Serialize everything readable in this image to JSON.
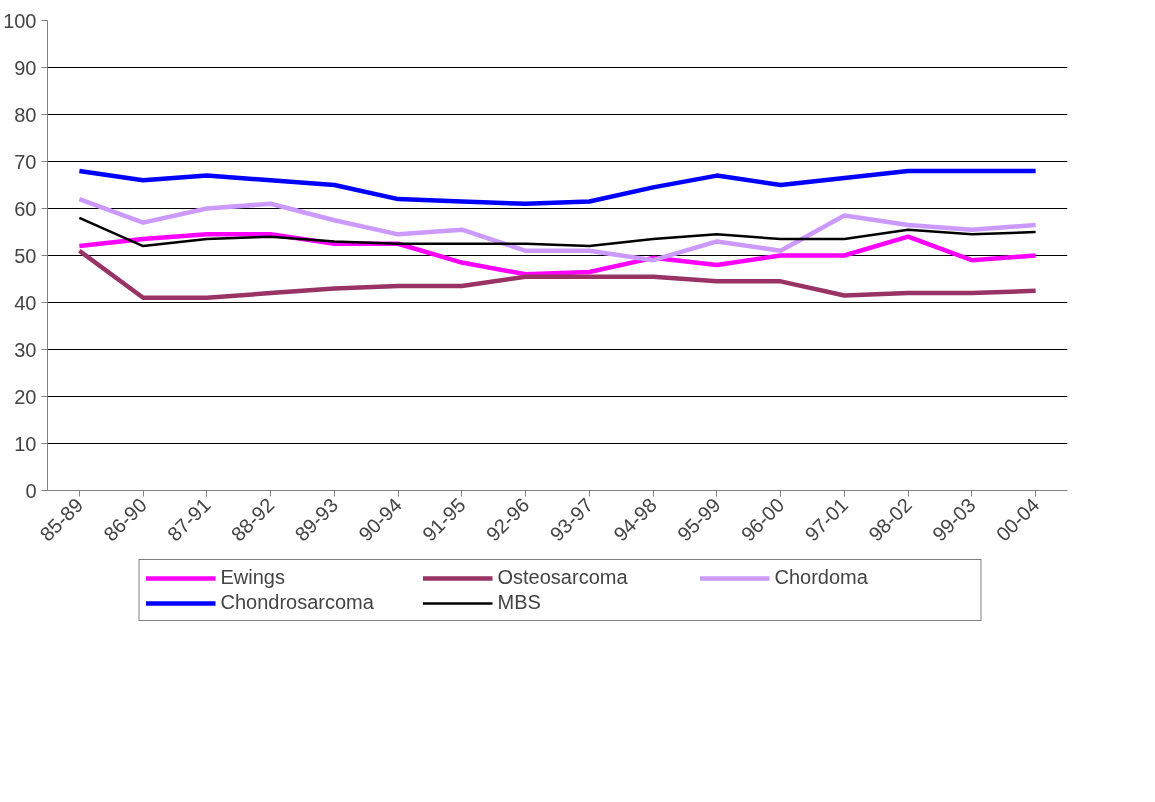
{
  "chart_data": {
    "type": "line",
    "categories": [
      "85-89",
      "86-90",
      "87-91",
      "88-92",
      "89-93",
      "90-94",
      "91-95",
      "92-96",
      "93-97",
      "94-98",
      "95-99",
      "96-00",
      "97-01",
      "98-02",
      "99-03",
      "00-04"
    ],
    "series": [
      {
        "name": "Ewings",
        "color": "#ff00ff",
        "values": [
          52,
          53.5,
          54.5,
          54.5,
          52.5,
          52.5,
          48.5,
          46,
          46.5,
          49.5,
          48,
          50,
          50,
          54,
          49,
          50
        ]
      },
      {
        "name": "Osteosarcoma",
        "color": "#993366",
        "values": [
          51,
          41,
          41,
          42,
          43,
          43.5,
          43.5,
          45.5,
          45.5,
          45.5,
          44.5,
          44.5,
          41.5,
          42,
          42,
          42.5
        ]
      },
      {
        "name": "Chordoma",
        "color": "#cc99ff",
        "values": [
          62,
          57,
          60,
          61,
          57.5,
          54.5,
          55.5,
          51,
          51,
          49,
          53,
          51,
          58.5,
          56.5,
          55.5,
          56.5
        ]
      },
      {
        "name": "Chondrosarcoma",
        "color": "#0000ff",
        "values": [
          68,
          66,
          67,
          66,
          65,
          62,
          61.5,
          61,
          61.5,
          64.5,
          67,
          65,
          66.5,
          68,
          68,
          68
        ]
      },
      {
        "name": "MBS",
        "color": "#000000",
        "values": [
          58,
          52,
          53.5,
          54,
          53,
          52.5,
          52.5,
          52.5,
          52,
          53.5,
          54.5,
          53.5,
          53.5,
          55.5,
          54.5,
          55
        ]
      }
    ],
    "ylim": [
      0,
      100
    ],
    "yticks": [
      0,
      10,
      20,
      30,
      40,
      50,
      60,
      70,
      80,
      90,
      100
    ],
    "grid": "y",
    "legend": "bottom",
    "marker": "none",
    "line_style": "solid"
  }
}
